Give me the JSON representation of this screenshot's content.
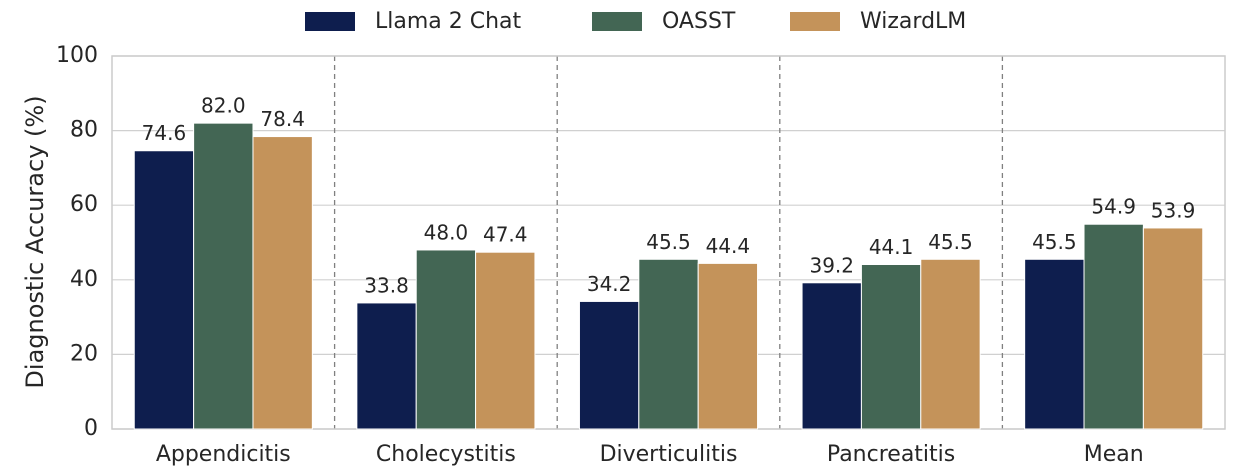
{
  "chart_data": {
    "type": "bar",
    "y_label": "Diagnostic Accuracy (%)",
    "categories": [
      "Appendicitis",
      "Cholecystitis",
      "Diverticulitis",
      "Pancreatitis",
      "Mean"
    ],
    "series": [
      {
        "name": "Llama 2 Chat",
        "color": "#0e1e4e",
        "values": [
          74.6,
          33.8,
          34.2,
          39.2,
          45.5
        ],
        "value_labels": [
          "74.6",
          "33.8",
          "34.2",
          "39.2",
          "45.5"
        ]
      },
      {
        "name": "OASST",
        "color": "#436654",
        "values": [
          82.0,
          48.0,
          45.5,
          44.1,
          54.9
        ],
        "value_labels": [
          "82.0",
          "48.0",
          "45.5",
          "44.1",
          "54.9"
        ]
      },
      {
        "name": "WizardLM",
        "color": "#c4935a",
        "values": [
          78.4,
          47.4,
          44.4,
          45.5,
          53.9
        ],
        "value_labels": [
          "78.4",
          "47.4",
          "44.4",
          "45.5",
          "53.9"
        ]
      }
    ],
    "ylim": [
      0,
      100
    ],
    "yticks": [
      0,
      20,
      40,
      60,
      80,
      100
    ],
    "grid": true,
    "legend": "top"
  }
}
